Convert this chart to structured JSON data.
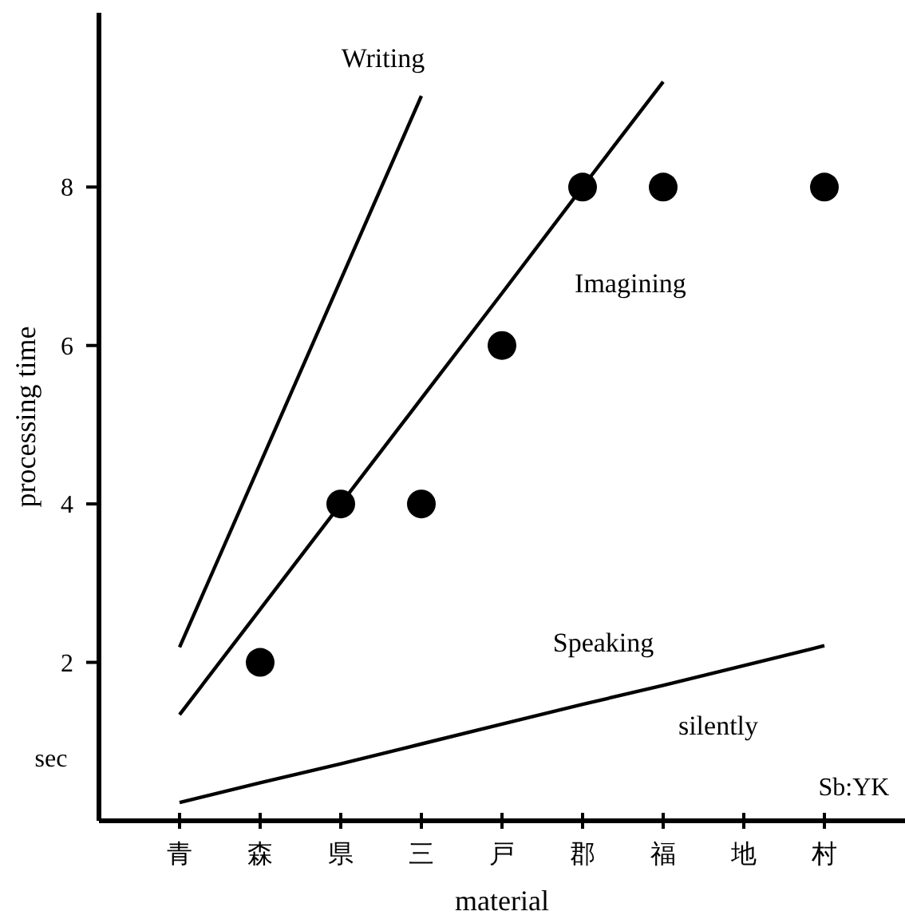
{
  "chart_data": {
    "type": "scatter",
    "xlabel": "material",
    "ylabel": "processing time",
    "ylim": [
      0,
      10.2
    ],
    "categories": [
      "青",
      "森",
      "県",
      "三",
      "戸",
      "郡",
      "福",
      "地",
      "村"
    ],
    "yticks": [
      2,
      4,
      6,
      8
    ],
    "grid": false,
    "legend": false,
    "series": [
      {
        "marker": "circle",
        "color": "#000000",
        "values": [
          null,
          2,
          4,
          4,
          6,
          8,
          8,
          null,
          8
        ]
      },
      {
        "type": "line",
        "name": "Writing",
        "marker": "none",
        "line_style": "solid",
        "color": "#000000",
        "values": [
          2.19,
          4.51,
          6.83,
          9.15,
          null,
          null,
          null,
          null,
          null
        ]
      },
      {
        "type": "line",
        "name": "Imagining",
        "marker": "none",
        "line_style": "solid",
        "color": "#000000",
        "values": [
          1.34,
          2.67,
          4.0,
          5.33,
          6.66,
          8.0,
          9.33,
          null,
          null
        ]
      },
      {
        "type": "line",
        "name": "Speaking silently",
        "marker": "none",
        "line_style": "solid",
        "color": "#000000",
        "values": [
          0.23,
          0.48,
          0.72,
          0.97,
          1.22,
          1.47,
          1.71,
          1.96,
          2.21
        ]
      }
    ],
    "annotations": [
      "sec",
      "Sb:YK"
    ]
  }
}
